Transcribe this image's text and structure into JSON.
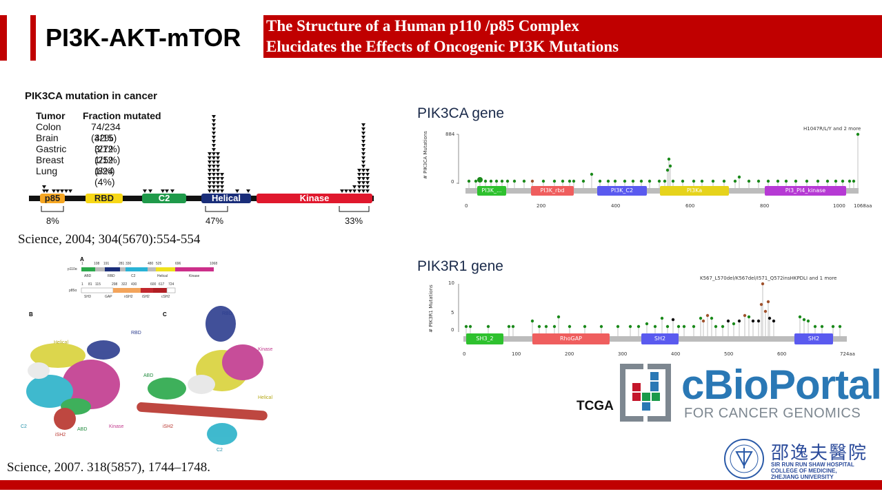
{
  "slide": {
    "title": "PI3K-AKT-mTOR",
    "banner_line1": "The Structure of a Human p110 /p85  Complex",
    "banner_line2": "Elucidates the Effects of Oncogenic PI3K  Mutations"
  },
  "pik3ca_figure": {
    "heading": "PIK3CA mutation in cancer",
    "col_tumor": "Tumor",
    "col_fraction": "Fraction mutated",
    "rows": [
      {
        "tumor": "Colon",
        "fraction": "74/234 (32%)"
      },
      {
        "tumor": "Brain",
        "fraction": "4/15 (27%)"
      },
      {
        "tumor": "Gastric",
        "fraction": "3/12 (25%)"
      },
      {
        "tumor": "Breast",
        "fraction": "1/12 (8%)"
      },
      {
        "tumor": "Lung",
        "fraction": "1/24 (4%)"
      }
    ],
    "domains": [
      "p85",
      "RBD",
      "C2",
      "Helical",
      "Kinase"
    ],
    "pct_p85": "8%",
    "pct_helical": "47%",
    "pct_kinase": "33%",
    "citation": "Science, 2004; 304(5670):554-554"
  },
  "structure_figure": {
    "panel_a": "A",
    "panel_b": "B",
    "panel_c": "C",
    "p110_label": "p110α",
    "p85_label": "p85α",
    "p110_ticks": [
      "1",
      "108",
      "191",
      "281",
      "330",
      "480",
      "525",
      "696",
      "1068"
    ],
    "p110_domains": [
      "ABD",
      "RBD",
      "C2",
      "Helical",
      "Kinase"
    ],
    "p85_ticks": [
      "1",
      "81",
      "115",
      "298",
      "322",
      "430",
      "600",
      "617",
      "724"
    ],
    "p85_domains": [
      "SH3",
      "GAP",
      "nSH2",
      "iSH2",
      "cSH2"
    ],
    "b_labels": [
      "Helical",
      "RBD",
      "C2",
      "ABD",
      "iSH2",
      "Kinase"
    ],
    "c_labels": [
      "RBD",
      "Kinase",
      "ABD",
      "Helical",
      "iSH2",
      "C2"
    ],
    "citation": "Science, 2007. 318(5857), 1744–1748."
  },
  "pik3ca_gene": {
    "title": "PIK3CA gene",
    "y_label": "# PIK3CA Mutations",
    "y_max": "884",
    "y_zero": "0",
    "annotation": "H1047R/L/Y and 2 more",
    "domains": [
      "PI3K_...",
      "PI3K_rbd",
      "PI3K_C2",
      "PI3Ka",
      "PI3_PI4_kinase"
    ],
    "x_ticks": [
      "0",
      "200",
      "400",
      "600",
      "800",
      "1000",
      "1068aa"
    ]
  },
  "pik3r1_gene": {
    "title": "PIK3R1 gene",
    "y_label": "# PIK3R1 Mutations",
    "y_max": "10",
    "y_mid": "5",
    "y_zero": "0",
    "annotation": "K567_L570del/K567del/I571_Q572insHKPDLI and 1 more",
    "domains": [
      "SH3_2",
      "RhoGAP",
      "SH2",
      "SH2"
    ],
    "x_ticks": [
      "0",
      "100",
      "200",
      "300",
      "400",
      "500",
      "600",
      "724aa"
    ]
  },
  "cbioportal": {
    "tcga": "TCGA",
    "name": "cBioPortal",
    "tagline": "FOR CANCER GENOMICS"
  },
  "institution": {
    "chinese_name": "邵逸夫醫院",
    "line1": "SIR RUN RUN SHAW HOSPITAL",
    "line2": "COLLEGE OF MEDICINE,",
    "line3": "ZHEJIANG UNIVERSITY"
  },
  "colors": {
    "accent_red": "#c00000",
    "p85": "#f5a623",
    "rbd": "#f7d716",
    "c2": "#1f9a4a",
    "helical": "#1a2e7a",
    "kinase": "#e0182d",
    "cbio_blue": "#2a78b5"
  }
}
